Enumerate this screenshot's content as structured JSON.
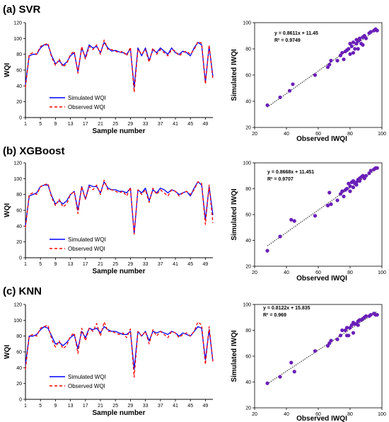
{
  "panels": [
    {
      "title": "(a) SVR",
      "line_chart": {
        "type": "line",
        "xlabel": "Sample number",
        "ylabel": "WQI",
        "ylim": [
          0,
          120
        ],
        "yticks": [
          0,
          20,
          40,
          60,
          80,
          100,
          120
        ],
        "xticks": [
          1,
          5,
          9,
          13,
          17,
          21,
          25,
          29,
          33,
          37,
          41,
          45,
          49
        ],
        "series": [
          {
            "name": "Simulated WQI",
            "color": "#0000ff",
            "style": "solid",
            "values": [
              42,
              78,
              80,
              80,
              88,
              92,
              92,
              78,
              68,
              72,
              66,
              70,
              78,
              82,
              58,
              88,
              76,
              92,
              88,
              90,
              82,
              95,
              88,
              84,
              85,
              83,
              82,
              80,
              87,
              38,
              88,
              78,
              88,
              72,
              86,
              82,
              88,
              84,
              80,
              88,
              82,
              80,
              84,
              82,
              78,
              88,
              95,
              92,
              45,
              90,
              52
            ]
          },
          {
            "name": "Observed WQI",
            "color": "#ff0000",
            "style": "dashed",
            "values": [
              38,
              80,
              82,
              80,
              90,
              92,
              94,
              76,
              66,
              74,
              64,
              68,
              80,
              84,
              56,
              90,
              74,
              90,
              86,
              92,
              80,
              98,
              86,
              86,
              84,
              82,
              84,
              78,
              89,
              32,
              86,
              80,
              86,
              70,
              88,
              80,
              86,
              82,
              78,
              86,
              84,
              78,
              82,
              84,
              80,
              86,
              96,
              94,
              42,
              92,
              48
            ]
          }
        ]
      },
      "scatter": {
        "type": "scatter",
        "xlabel": "Observed IWQI",
        "ylabel": "Simulated IWQI",
        "xlim": [
          20,
          100
        ],
        "ylim": [
          20,
          100
        ],
        "xticks": [
          20,
          40,
          60,
          80,
          100
        ],
        "yticks": [
          20,
          40,
          60,
          80,
          100
        ],
        "equation": "y = 0.8611x + 11.45",
        "r2": "R² = 0.9749",
        "slope": 0.8611,
        "intercept": 11.45,
        "point_color": "#6a1fb8",
        "points": [
          [
            28,
            37
          ],
          [
            36,
            43
          ],
          [
            42,
            48
          ],
          [
            44,
            53
          ],
          [
            58,
            60
          ],
          [
            66,
            66
          ],
          [
            67,
            68
          ],
          [
            68,
            71
          ],
          [
            72,
            71
          ],
          [
            74,
            75
          ],
          [
            75,
            77
          ],
          [
            77,
            78
          ],
          [
            78,
            79
          ],
          [
            79,
            80
          ],
          [
            80,
            76
          ],
          [
            80,
            84
          ],
          [
            81,
            82
          ],
          [
            82,
            85
          ],
          [
            83,
            80
          ],
          [
            84,
            84
          ],
          [
            84,
            87
          ],
          [
            85,
            86
          ],
          [
            86,
            87
          ],
          [
            86,
            88
          ],
          [
            87,
            84
          ],
          [
            88,
            89
          ],
          [
            89,
            90
          ],
          [
            90,
            88
          ],
          [
            92,
            92
          ],
          [
            93,
            93
          ],
          [
            95,
            94
          ],
          [
            96,
            95
          ],
          [
            97,
            94
          ],
          [
            88,
            83
          ],
          [
            85,
            80
          ],
          [
            76,
            72
          ],
          [
            82,
            77
          ]
        ]
      }
    },
    {
      "title": "(b) XGBoost",
      "line_chart": {
        "type": "line",
        "xlabel": "Sample number",
        "ylabel": "WQI",
        "ylim": [
          0,
          120
        ],
        "yticks": [
          0,
          20,
          40,
          60,
          80,
          100,
          120
        ],
        "xticks": [
          1,
          5,
          9,
          13,
          17,
          21,
          25,
          29,
          33,
          37,
          41,
          45,
          49
        ],
        "series": [
          {
            "name": "Simulated WQI",
            "color": "#0000ff",
            "style": "solid",
            "values": [
              40,
              78,
              80,
              82,
              90,
              92,
              92,
              78,
              68,
              72,
              68,
              72,
              80,
              84,
              60,
              90,
              74,
              92,
              90,
              90,
              82,
              96,
              88,
              86,
              86,
              84,
              84,
              82,
              88,
              30,
              86,
              82,
              88,
              72,
              86,
              82,
              88,
              86,
              82,
              86,
              84,
              80,
              82,
              84,
              78,
              88,
              96,
              92,
              48,
              90,
              54
            ]
          },
          {
            "name": "Observed WQI",
            "color": "#ff0000",
            "style": "dashed",
            "values": [
              38,
              80,
              82,
              80,
              90,
              92,
              94,
              76,
              66,
              74,
              64,
              68,
              80,
              84,
              56,
              90,
              74,
              90,
              86,
              92,
              80,
              98,
              86,
              86,
              84,
              82,
              84,
              78,
              89,
              30,
              86,
              80,
              86,
              70,
              88,
              80,
              86,
              82,
              78,
              86,
              84,
              78,
              82,
              84,
              80,
              86,
              96,
              94,
              42,
              92,
              44
            ]
          }
        ]
      },
      "scatter": {
        "type": "scatter",
        "xlabel": "Observed IWQI",
        "ylabel": "Simulated IWQI",
        "xlim": [
          20,
          100
        ],
        "ylim": [
          20,
          100
        ],
        "xticks": [
          20,
          40,
          60,
          80,
          100
        ],
        "yticks": [
          20,
          40,
          60,
          80,
          100
        ],
        "equation": "y = 0.8668x + 11.451",
        "r2": "R² = 0.9707",
        "slope": 0.8668,
        "intercept": 11.451,
        "point_color": "#6a1fb8",
        "points": [
          [
            28,
            32
          ],
          [
            36,
            43
          ],
          [
            43,
            56
          ],
          [
            45,
            55
          ],
          [
            58,
            59
          ],
          [
            66,
            67
          ],
          [
            67,
            77
          ],
          [
            68,
            68
          ],
          [
            72,
            71
          ],
          [
            74,
            76
          ],
          [
            75,
            78
          ],
          [
            77,
            79
          ],
          [
            78,
            80
          ],
          [
            79,
            84
          ],
          [
            80,
            78
          ],
          [
            80,
            82
          ],
          [
            81,
            85
          ],
          [
            82,
            86
          ],
          [
            83,
            84
          ],
          [
            84,
            85
          ],
          [
            85,
            87
          ],
          [
            86,
            88
          ],
          [
            86,
            86
          ],
          [
            87,
            89
          ],
          [
            88,
            90
          ],
          [
            89,
            88
          ],
          [
            90,
            90
          ],
          [
            92,
            92
          ],
          [
            93,
            94
          ],
          [
            95,
            95
          ],
          [
            96,
            96
          ],
          [
            97,
            96
          ],
          [
            84,
            83
          ],
          [
            82,
            81
          ],
          [
            76,
            74
          ]
        ]
      }
    },
    {
      "title": "(c) KNN",
      "line_chart": {
        "type": "line",
        "xlabel": "Sample number",
        "ylabel": "WQI",
        "ylim": [
          0,
          120
        ],
        "yticks": [
          0,
          20,
          40,
          60,
          80,
          100,
          120
        ],
        "xticks": [
          1,
          5,
          9,
          13,
          17,
          21,
          25,
          29,
          33,
          37,
          41,
          45,
          49
        ],
        "series": [
          {
            "name": "Simulated WQI",
            "color": "#0000ff",
            "style": "solid",
            "values": [
              44,
              80,
              80,
              82,
              88,
              92,
              90,
              80,
              70,
              72,
              68,
              72,
              78,
              82,
              64,
              86,
              78,
              90,
              88,
              90,
              84,
              92,
              88,
              86,
              86,
              84,
              82,
              82,
              86,
              38,
              86,
              80,
              86,
              74,
              86,
              84,
              86,
              84,
              82,
              86,
              84,
              80,
              84,
              82,
              80,
              86,
              92,
              90,
              50,
              88,
              48
            ]
          },
          {
            "name": "Observed WQI",
            "color": "#ff0000",
            "style": "dashed",
            "values": [
              38,
              80,
              82,
              80,
              90,
              92,
              94,
              76,
              66,
              74,
              64,
              68,
              80,
              84,
              58,
              90,
              74,
              90,
              86,
              96,
              80,
              98,
              86,
              86,
              84,
              82,
              84,
              78,
              89,
              28,
              86,
              80,
              86,
              70,
              88,
              80,
              86,
              82,
              78,
              86,
              84,
              78,
              82,
              84,
              80,
              86,
              98,
              94,
              44,
              92,
              48
            ]
          }
        ]
      },
      "scatter": {
        "type": "scatter",
        "xlabel": "Observed IWQI",
        "ylabel": "Simulated IWQI",
        "xlim": [
          20,
          100
        ],
        "ylim": [
          20,
          100
        ],
        "xticks": [
          20,
          40,
          60,
          80,
          100
        ],
        "yticks": [
          20,
          40,
          60,
          80,
          100
        ],
        "equation": "y = 0.8122x + 15.835",
        "r2": "R² = 0.969",
        "slope": 0.8122,
        "intercept": 15.835,
        "point_color": "#6a1fb8",
        "points": [
          [
            28,
            39
          ],
          [
            36,
            44
          ],
          [
            43,
            55
          ],
          [
            45,
            48
          ],
          [
            58,
            64
          ],
          [
            66,
            68
          ],
          [
            67,
            70
          ],
          [
            68,
            72
          ],
          [
            72,
            73
          ],
          [
            74,
            76
          ],
          [
            75,
            80
          ],
          [
            77,
            80
          ],
          [
            78,
            82
          ],
          [
            79,
            76
          ],
          [
            80,
            82
          ],
          [
            81,
            84
          ],
          [
            82,
            86
          ],
          [
            83,
            85
          ],
          [
            84,
            85
          ],
          [
            85,
            87
          ],
          [
            86,
            88
          ],
          [
            87,
            88
          ],
          [
            88,
            89
          ],
          [
            89,
            90
          ],
          [
            90,
            91
          ],
          [
            92,
            91
          ],
          [
            93,
            92
          ],
          [
            95,
            93
          ],
          [
            96,
            92
          ],
          [
            97,
            92
          ],
          [
            82,
            78
          ],
          [
            78,
            76
          ],
          [
            85,
            84
          ]
        ]
      }
    }
  ]
}
